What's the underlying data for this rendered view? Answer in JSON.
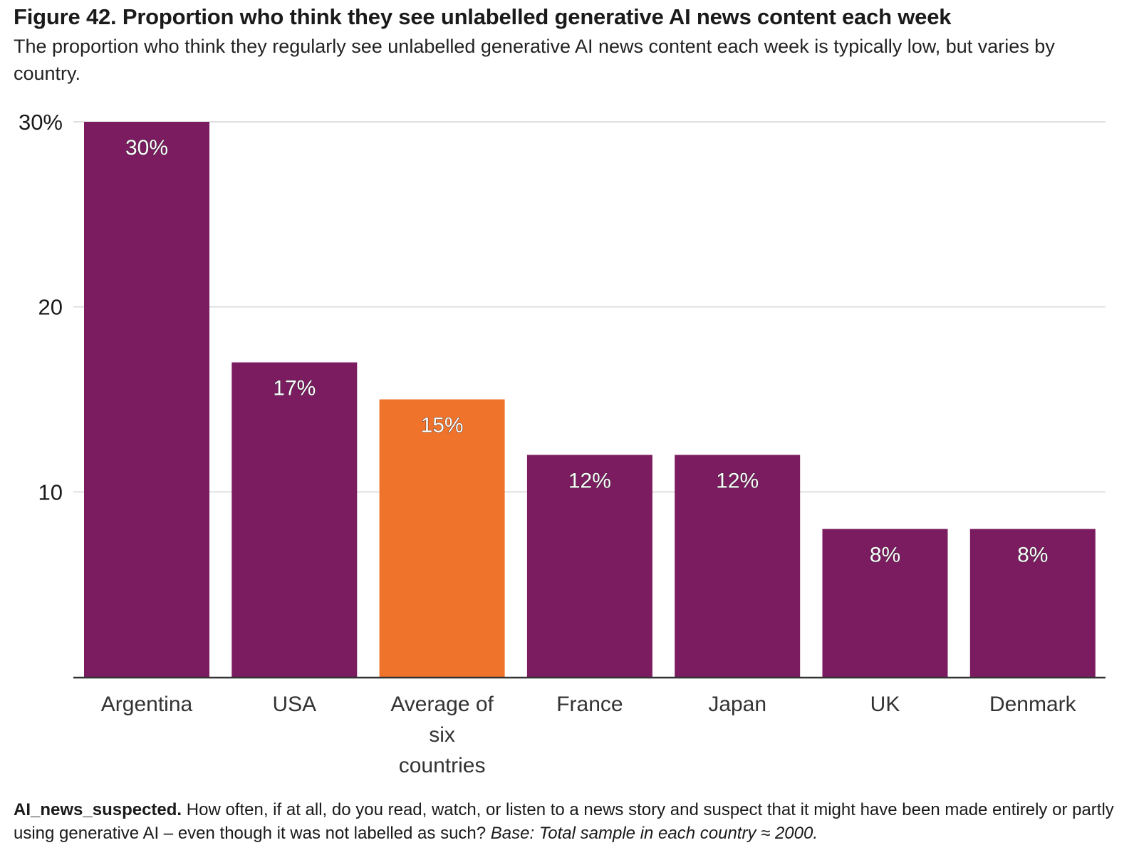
{
  "title": "Figure 42. Proportion who think they see unlabelled generative AI news content each week",
  "subtitle": "The proportion who think they regularly see unlabelled generative AI news content each week is typically low, but varies by country.",
  "footnote": {
    "question_id": "AI_news_suspected.",
    "question_text": " How often, if at all, do you read, watch, or listen to a news story and suspect that it might have been made entirely or partly using generative AI – even though it was not labelled as such? ",
    "base": "Base: Total sample in each country ≈ 2000."
  },
  "colors": {
    "country": "#7b1c60",
    "average": "#f0732b",
    "gridline": "#e0e0e0",
    "axis": "#333333"
  },
  "chart_data": {
    "type": "bar",
    "title": "Figure 42. Proportion who think they see unlabelled generative AI news content each week",
    "xlabel": "",
    "ylabel": "",
    "ylim": [
      0,
      30
    ],
    "yticks": [
      {
        "value": 10,
        "label": "10"
      },
      {
        "value": 20,
        "label": "20"
      },
      {
        "value": 30,
        "label": "30%"
      }
    ],
    "grid": true,
    "legend": "none",
    "categories": [
      "Argentina",
      "USA",
      "Average of six countries",
      "France",
      "Japan",
      "UK",
      "Denmark"
    ],
    "category_label_lines": [
      [
        "Argentina"
      ],
      [
        "USA"
      ],
      [
        "Average of",
        "six",
        "countries"
      ],
      [
        "France"
      ],
      [
        "Japan"
      ],
      [
        "UK"
      ],
      [
        "Denmark"
      ]
    ],
    "values": [
      30,
      17,
      15,
      12,
      12,
      8,
      8
    ],
    "data_labels": [
      "30%",
      "17%",
      "15%",
      "12%",
      "12%",
      "8%",
      "8%"
    ],
    "highlight": [
      false,
      false,
      true,
      false,
      false,
      false,
      false
    ]
  }
}
